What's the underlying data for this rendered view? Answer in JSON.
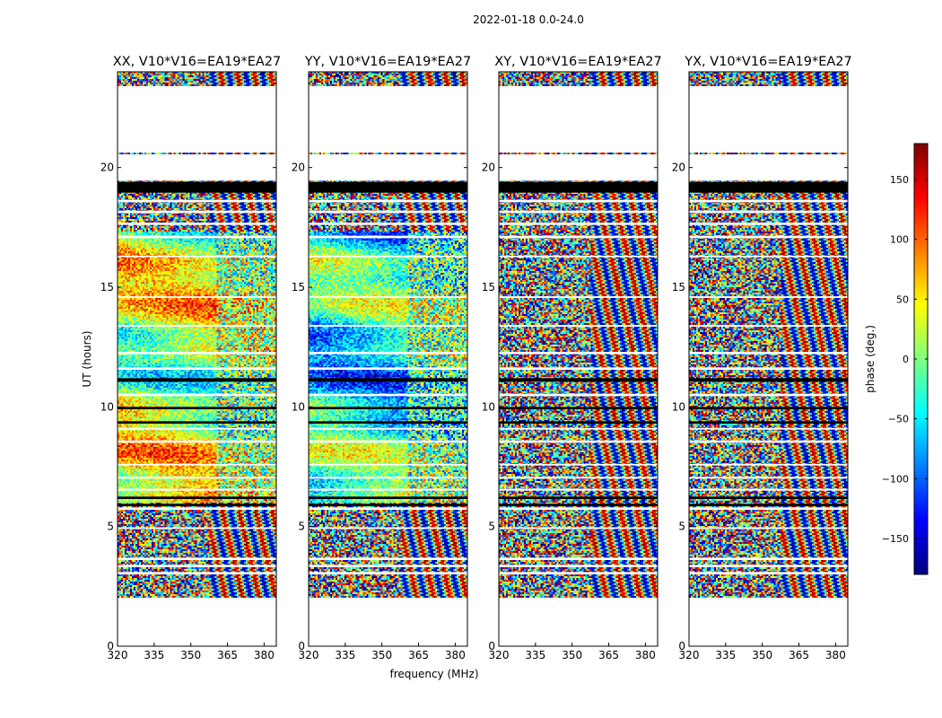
{
  "figure": {
    "suptitle": "2022-01-18 0.0-24.0"
  },
  "chart_data": {
    "type": "heatmap",
    "suptitle": "2022-01-18 0.0-24.0",
    "xlabel": "frequency (MHz)",
    "ylabel": "UT (hours)",
    "xlim": [
      320,
      385
    ],
    "ylim": [
      0,
      24
    ],
    "xticks": [
      320,
      335,
      350,
      365,
      380
    ],
    "yticks": [
      0,
      5,
      10,
      15,
      20
    ],
    "colorbar": {
      "label": "phase (deg.)",
      "vmin": -180,
      "vmax": 180,
      "ticks": [
        150,
        100,
        50,
        0,
        -50,
        -100,
        -150
      ],
      "tick_labels": [
        "150",
        "100",
        "50",
        "0",
        "−50",
        "−100",
        "−150"
      ],
      "colormap": [
        "#00007f",
        "#0000ff",
        "#007fff",
        "#00ffff",
        "#7fff7f",
        "#ffff00",
        "#ff7f00",
        "#ff0000",
        "#7f0000"
      ]
    },
    "panels": [
      {
        "id": "xx",
        "title": "XX, V10*V16=EA19*EA27",
        "pol": "XX",
        "smooth": 0.62
      },
      {
        "id": "yy",
        "title": "YY, V10*V16=EA19*EA27",
        "pol": "YY",
        "smooth": 0.62
      },
      {
        "id": "xy",
        "title": "XY, V10*V16=EA19*EA27",
        "pol": "XY",
        "smooth": 0.0
      },
      {
        "id": "yx",
        "title": "YX, V10*V16=EA19*EA27",
        "pol": "YX",
        "smooth": 0.0
      }
    ],
    "data_ut_range": [
      2.0,
      24.0
    ],
    "blank_ut_ranges": [
      [
        0.0,
        2.0
      ],
      [
        20.6,
        23.4
      ]
    ],
    "flagged_black_ut_ranges": [
      [
        18.95,
        19.4
      ],
      [
        11.05,
        11.2
      ],
      [
        9.9,
        10.0
      ],
      [
        9.3,
        9.4
      ],
      [
        6.15,
        6.25
      ],
      [
        5.85,
        5.95
      ]
    ],
    "flagged_white_ut_ranges": [
      [
        19.45,
        20.55
      ],
      [
        18.55,
        18.65
      ],
      [
        18.1,
        18.2
      ],
      [
        17.6,
        17.7
      ],
      [
        17.05,
        17.15
      ],
      [
        16.25,
        16.32
      ],
      [
        14.55,
        14.62
      ],
      [
        13.35,
        13.42
      ],
      [
        12.2,
        12.3
      ],
      [
        11.55,
        11.65
      ],
      [
        10.45,
        10.55
      ],
      [
        9.05,
        9.12
      ],
      [
        8.5,
        8.6
      ],
      [
        7.55,
        7.62
      ],
      [
        7.0,
        7.08
      ],
      [
        6.5,
        6.58
      ],
      [
        5.7,
        5.8
      ],
      [
        4.9,
        4.97
      ],
      [
        3.6,
        3.7
      ],
      [
        3.3,
        3.4
      ],
      [
        3.0,
        3.1
      ]
    ],
    "hidden_footer": "· · · · ·"
  }
}
